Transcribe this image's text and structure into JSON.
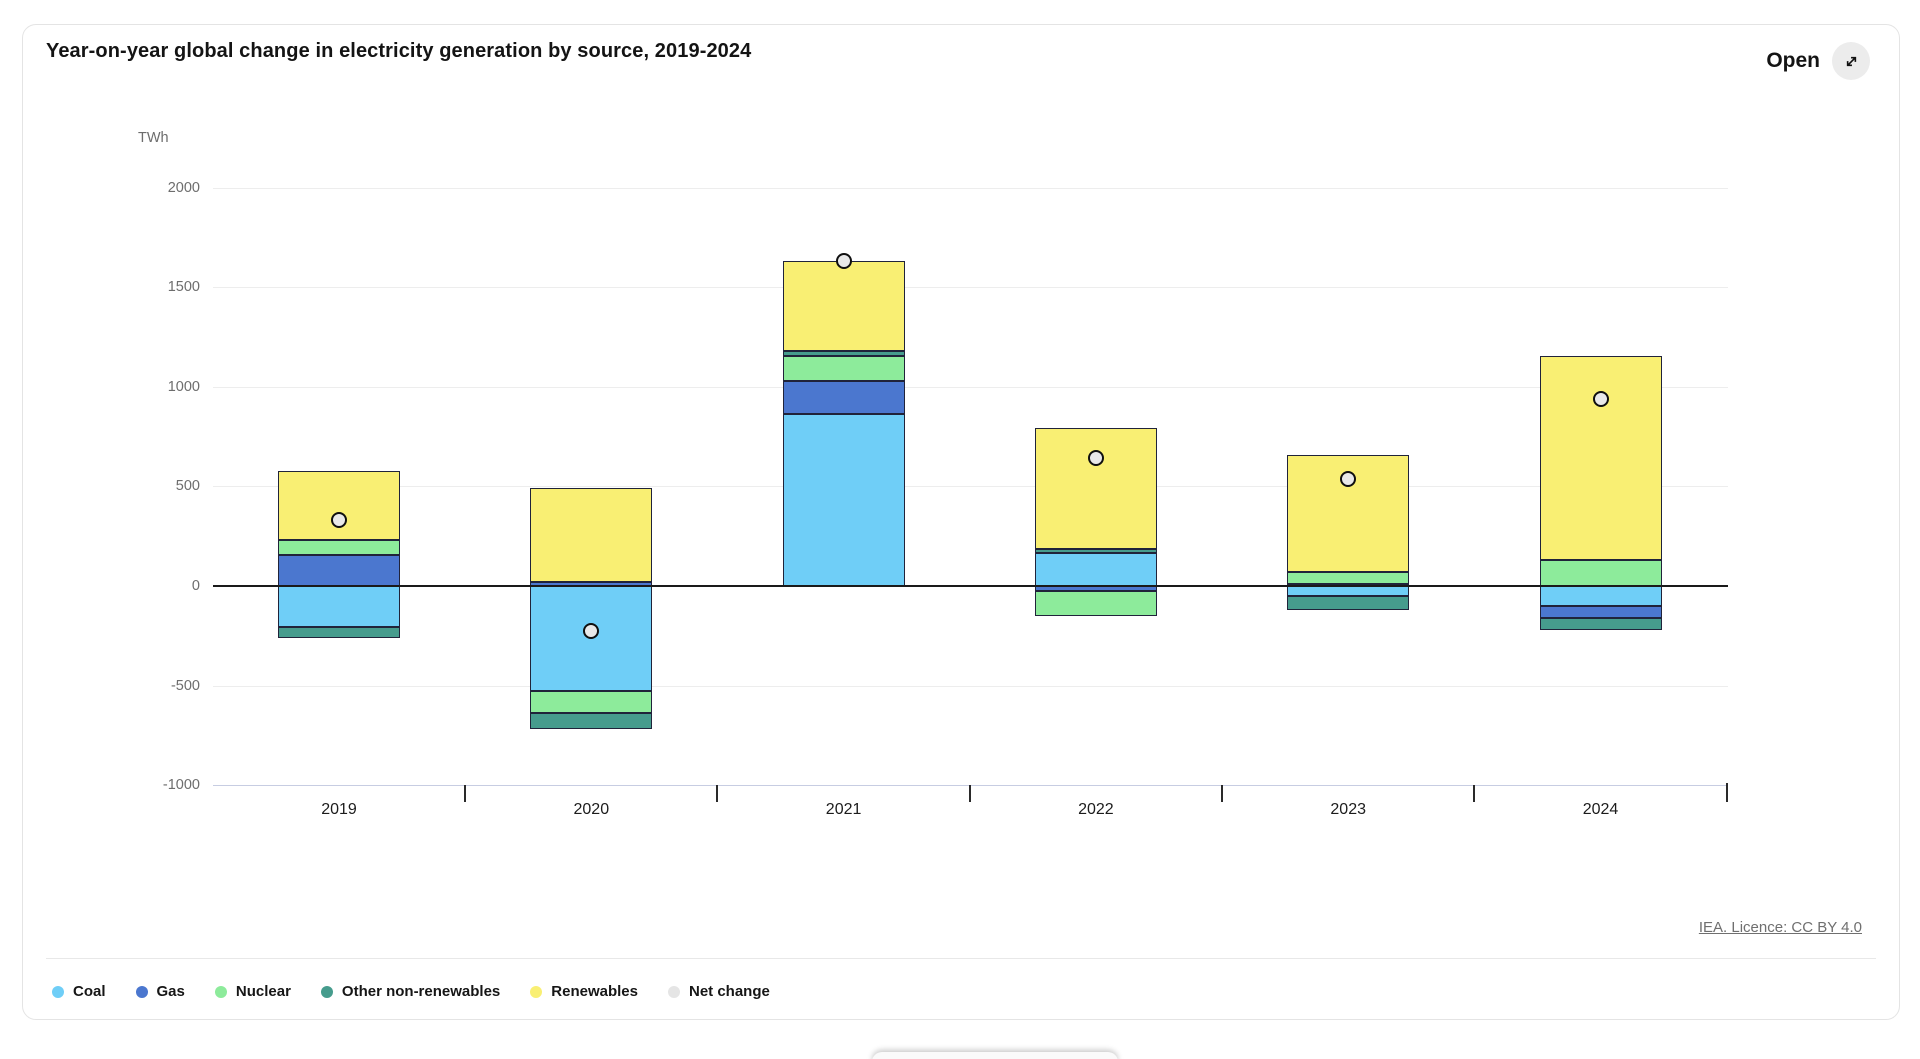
{
  "card": {
    "title": "Year-on-year global change in electricity generation by source, 2019-2024",
    "open_label": "Open",
    "open_icon": "expand-diagonal-icon",
    "footer_link": "IEA. Licence: CC BY 4.0"
  },
  "chart_data": {
    "type": "bar",
    "stacked": true,
    "title": "Year-on-year global change in electricity generation by source, 2019-2024",
    "unit_label": "TWh",
    "xlabel": "",
    "ylabel": "TWh",
    "ylim": [
      -1000,
      2000
    ],
    "ytick_step": 500,
    "grid": true,
    "legend_position": "bottom",
    "categories": [
      "2019",
      "2020",
      "2021",
      "2022",
      "2023",
      "2024"
    ],
    "series": [
      {
        "name": "Coal",
        "color": "#6fcef7",
        "values": [
          -205,
          -525,
          865,
          165,
          -50,
          -100
        ]
      },
      {
        "name": "Gas",
        "color": "#4b77cf",
        "values": [
          155,
          20,
          165,
          -25,
          10,
          -60
        ]
      },
      {
        "name": "Nuclear",
        "color": "#8deb9b",
        "values": [
          75,
          -115,
          125,
          -125,
          60,
          130
        ]
      },
      {
        "name": "Other non-renewables",
        "color": "#469c8d",
        "values": [
          -55,
          -80,
          25,
          20,
          -70,
          -60
        ]
      },
      {
        "name": "Renewables",
        "color": "#f9ef73",
        "values": [
          345,
          470,
          450,
          610,
          590,
          1025
        ]
      }
    ],
    "net_change": {
      "name": "Net change",
      "color": "#e9e9e9",
      "values": [
        330,
        -225,
        1630,
        645,
        535,
        940
      ]
    }
  }
}
